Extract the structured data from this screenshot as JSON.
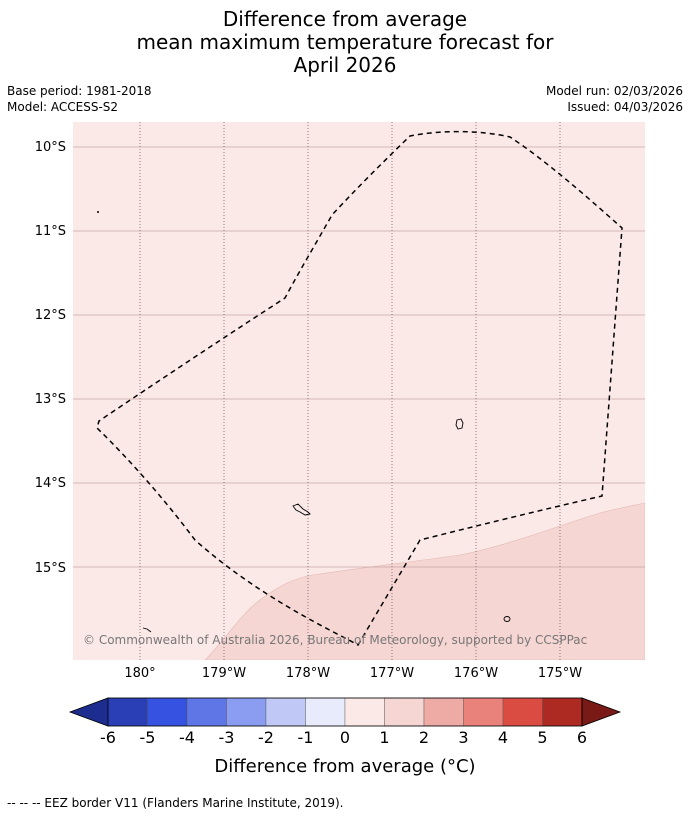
{
  "title": {
    "line1": "Difference from average",
    "line2": "mean maximum temperature forecast for",
    "line3": "April 2026"
  },
  "meta": {
    "base_period": "Base period: 1981-2018",
    "model": "Model: ACCESS-S2",
    "model_run": "Model run: 02/03/2026",
    "issued": "Issued: 04/03/2026"
  },
  "map": {
    "latitude_labels": [
      "10°S",
      "11°S",
      "12°S",
      "13°S",
      "14°S",
      "15°S"
    ],
    "longitude_labels": [
      "180°",
      "179°W",
      "178°W",
      "177°W",
      "176°W",
      "175°W"
    ],
    "copyright": "© Commonwealth of Australia 2026, Bureau of Meteorology, supported by CCSPPac",
    "background_color": "#fbe9e7",
    "warm_region_color": "#f5d6d3"
  },
  "colorbar": {
    "tick_labels": [
      "-6",
      "-5",
      "-4",
      "-3",
      "-2",
      "-1",
      "0",
      "1",
      "2",
      "3",
      "4",
      "5",
      "6"
    ],
    "colors": [
      "#1d2d8f",
      "#2a3fb5",
      "#3552e0",
      "#5f77e6",
      "#8a9df0",
      "#c0c8f5",
      "#e8ebfb",
      "#fbe9e7",
      "#f5d6d3",
      "#eeaaa5",
      "#e8827b",
      "#da4b42",
      "#ac2a22",
      "#7a1a17"
    ],
    "title": "Difference from average (°C)"
  },
  "footnote": "--  --  -- EEZ border V11 (Flanders Marine Institute, 2019)."
}
